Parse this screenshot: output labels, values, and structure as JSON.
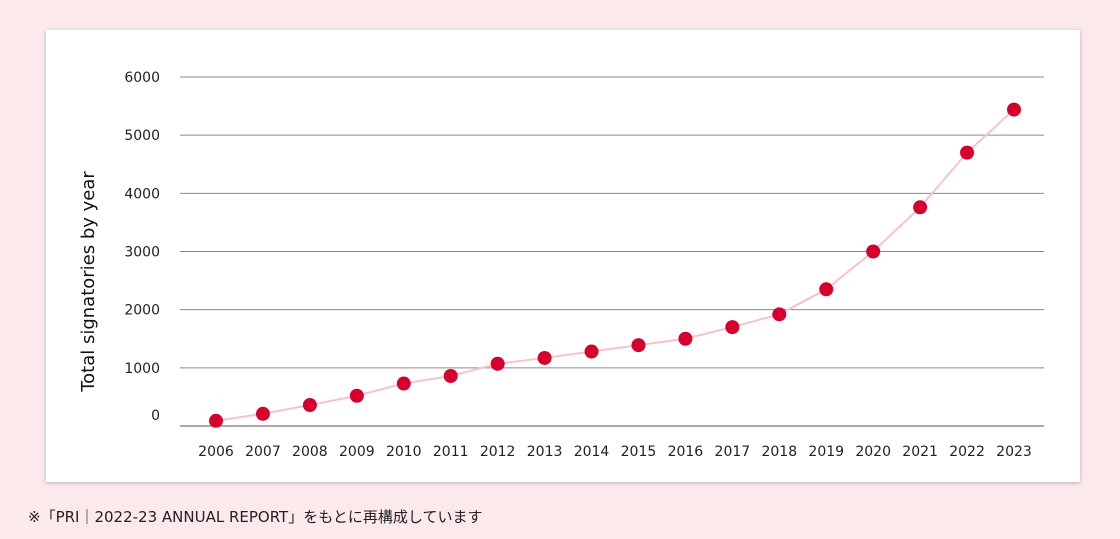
{
  "chart_data": {
    "type": "line",
    "ylabel": "Total signatories by year",
    "xlabel": "",
    "categories": [
      "2006",
      "2007",
      "2008",
      "2009",
      "2010",
      "2011",
      "2012",
      "2013",
      "2014",
      "2015",
      "2016",
      "2017",
      "2018",
      "2019",
      "2020",
      "2021",
      "2022",
      "2023"
    ],
    "series": [
      {
        "values": [
          90,
          210,
          360,
          520,
          730,
          860,
          1070,
          1170,
          1280,
          1390,
          1500,
          1700,
          1920,
          2350,
          3000,
          3760,
          4700,
          5440
        ]
      }
    ],
    "ylim": [
      0,
      6000
    ],
    "yticks": [
      "0",
      "1000",
      "2000",
      "3000",
      "4000",
      "5000",
      "6000"
    ],
    "grid": true,
    "colors": {
      "marker": "#d6002f",
      "line": "#f6c3cb",
      "grid": "#8a8a8a",
      "background": "#fce9ec"
    }
  },
  "footnote": "※「PRI｜2022-23 ANNUAL REPORT」をもとに再構成しています"
}
